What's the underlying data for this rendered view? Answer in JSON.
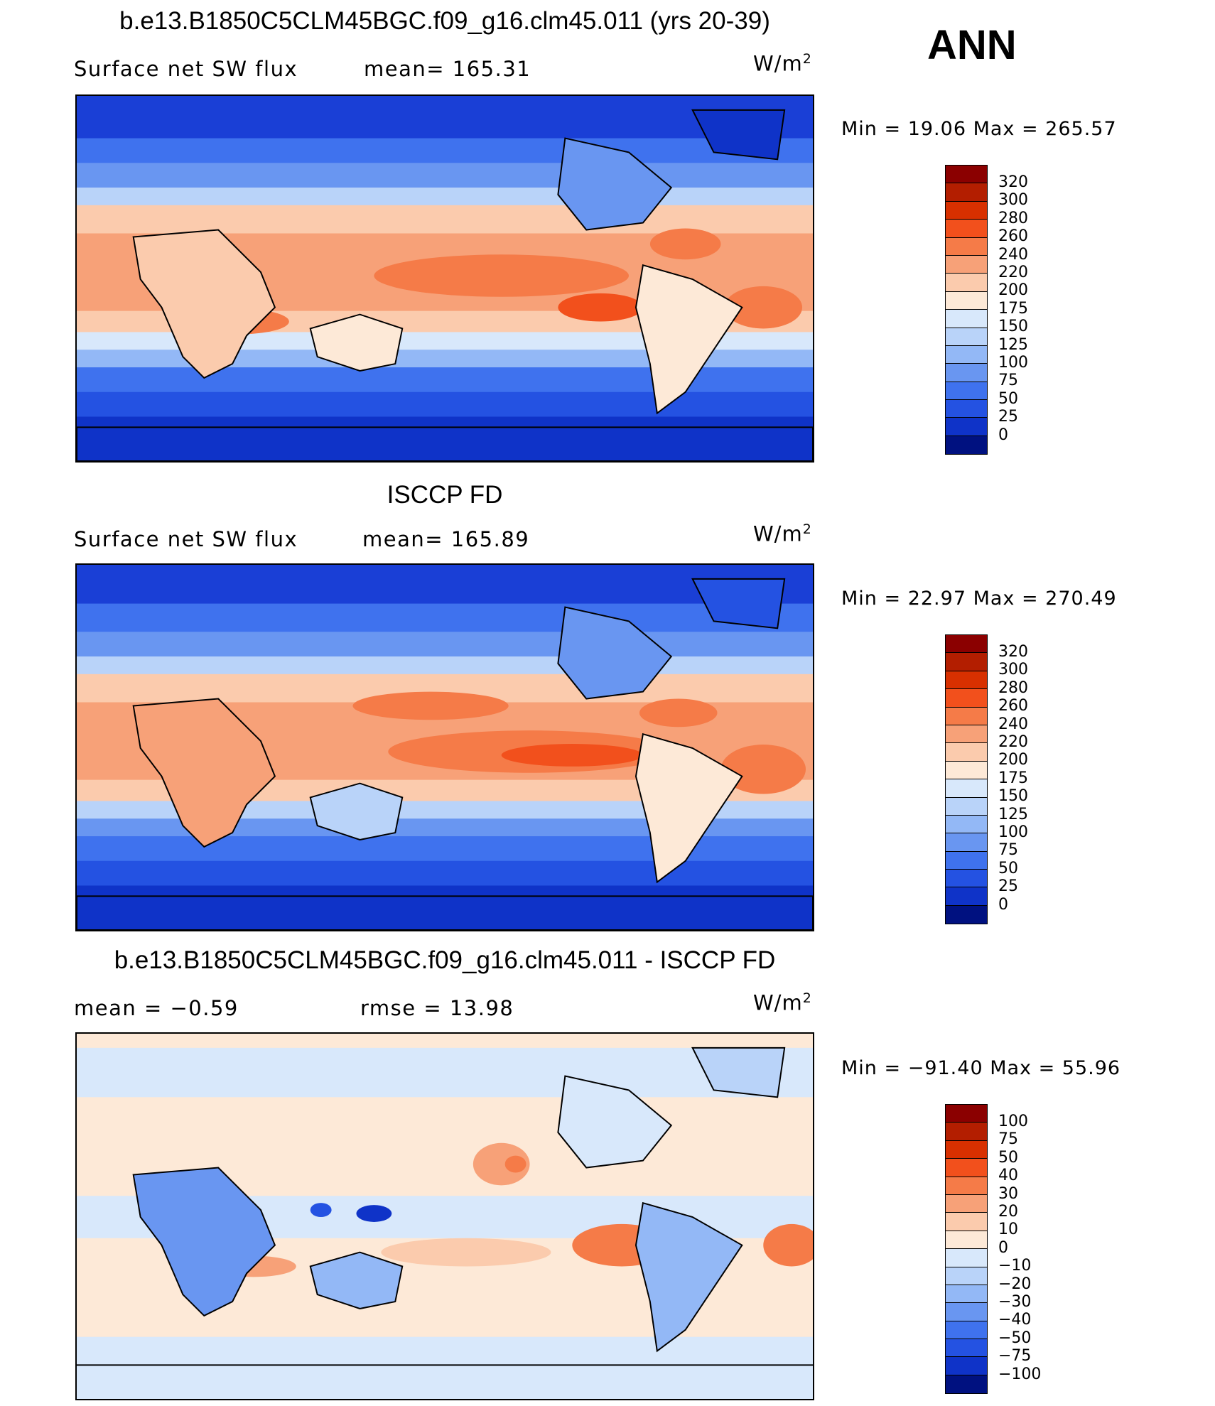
{
  "header": {
    "season": "ANN"
  },
  "panels": [
    {
      "title": "b.e13.B1850C5CLM45BGC.f09_g16.clm45.011 (yrs 20-39)",
      "left_label": "Surface net SW flux",
      "center_label": "mean= 165.31",
      "units": "W/m",
      "units_exp": "2",
      "minmax": "Min =   19.06 Max = 265.57",
      "colorbar": {
        "labels": [
          "320",
          "300",
          "280",
          "260",
          "240",
          "220",
          "200",
          "175",
          "150",
          "125",
          "100",
          "75",
          "50",
          "25",
          "0"
        ],
        "colors": [
          "#8b0000",
          "#b31e00",
          "#d83000",
          "#f2501c",
          "#f57b48",
          "#f7a178",
          "#fbcbad",
          "#fde9d7",
          "#d8e8fb",
          "#b9d3f9",
          "#93b8f6",
          "#6996f1",
          "#3f72ee",
          "#2452e2",
          "#0f33c8",
          "#001180"
        ]
      }
    },
    {
      "title": "ISCCP FD",
      "left_label": "Surface net SW flux",
      "center_label": "mean= 165.89",
      "units": "W/m",
      "units_exp": "2",
      "minmax": "Min =   22.97 Max = 270.49",
      "colorbar": {
        "labels": [
          "320",
          "300",
          "280",
          "260",
          "240",
          "220",
          "200",
          "175",
          "150",
          "125",
          "100",
          "75",
          "50",
          "25",
          "0"
        ],
        "colors": [
          "#8b0000",
          "#b31e00",
          "#d83000",
          "#f2501c",
          "#f57b48",
          "#f7a178",
          "#fbcbad",
          "#fde9d7",
          "#d8e8fb",
          "#b9d3f9",
          "#93b8f6",
          "#6996f1",
          "#3f72ee",
          "#2452e2",
          "#0f33c8",
          "#001180"
        ]
      }
    },
    {
      "title": "b.e13.B1850C5CLM45BGC.f09_g16.clm45.011 - ISCCP FD",
      "left_label": "mean =   −0.59",
      "center_label": "rmse =   13.98",
      "units": "W/m",
      "units_exp": "2",
      "minmax": "Min = −91.40 Max =   55.96",
      "colorbar": {
        "labels": [
          "100",
          "75",
          "50",
          "40",
          "30",
          "20",
          "10",
          "0",
          "−10",
          "−20",
          "−30",
          "−40",
          "−50",
          "−75",
          "−100"
        ],
        "colors": [
          "#8b0000",
          "#b31e00",
          "#d83000",
          "#f2501c",
          "#f57b48",
          "#f7a178",
          "#fbcbad",
          "#fde9d7",
          "#d8e8fb",
          "#b9d3f9",
          "#93b8f6",
          "#6996f1",
          "#3f72ee",
          "#2452e2",
          "#0f33c8",
          "#001180"
        ]
      }
    }
  ]
}
